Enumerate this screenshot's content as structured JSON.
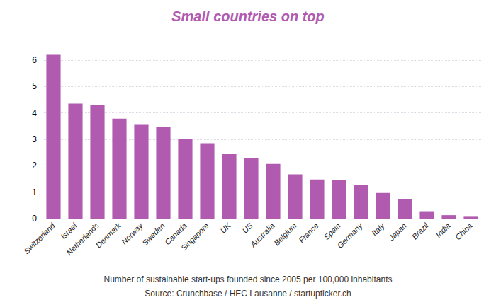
{
  "chart_data": {
    "type": "bar",
    "title": "Small countries on top",
    "subtitle": "Number of sustainable start-ups founded since 2005 per 100,000 inhabitants",
    "source": "Source: Crunchbase / HEC Lausanne / startupticker.ch",
    "categories": [
      "Switzerland",
      "Israel",
      "Netherlands",
      "Denmark",
      "Norway",
      "Sweden",
      "Canada",
      "Singapore",
      "UK",
      "US",
      "Australia",
      "Belgium",
      "France",
      "Spain",
      "Germany",
      "Italy",
      "Japan",
      "Brazil",
      "India",
      "China"
    ],
    "values": [
      6.2,
      4.35,
      4.3,
      3.78,
      3.55,
      3.48,
      3.0,
      2.85,
      2.45,
      2.3,
      2.07,
      1.67,
      1.48,
      1.47,
      1.28,
      0.97,
      0.75,
      0.28,
      0.13,
      0.07
    ],
    "color": "#b05ab0",
    "ylim": [
      0,
      6.8
    ],
    "yticks": [
      0,
      1,
      2,
      3,
      4,
      5,
      6
    ],
    "grid": true
  }
}
